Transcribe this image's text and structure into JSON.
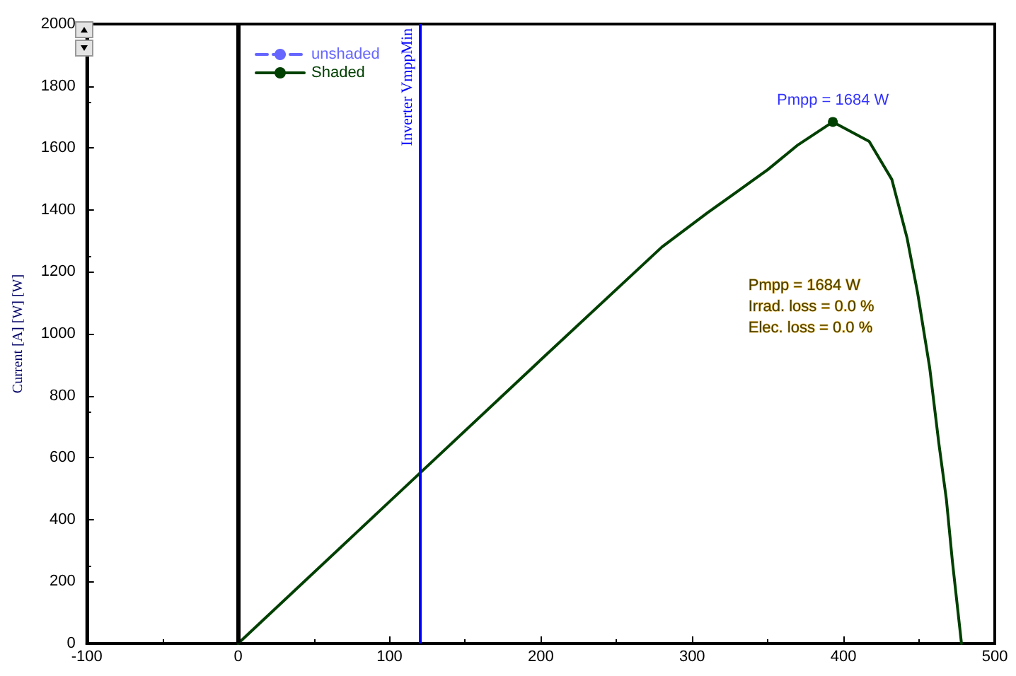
{
  "chart_data": {
    "type": "line",
    "ylabel": "Current [A] [W] [W]",
    "x": [
      0,
      100,
      200,
      280,
      310,
      330,
      350,
      370,
      393,
      417,
      432,
      442,
      449,
      457,
      463,
      468,
      472,
      478
    ],
    "series": [
      {
        "name": "unshaded",
        "color": "#6666ff",
        "line_style": "dashed",
        "values": [
          null,
          null,
          null,
          null,
          null,
          null,
          null,
          null,
          null,
          null,
          null,
          null,
          null,
          null,
          null,
          null,
          null,
          null
        ]
      },
      {
        "name": "Shaded",
        "color": "#004000",
        "line_style": "solid",
        "values": [
          0,
          458,
          916,
          1280,
          1390,
          1460,
          1530,
          1610,
          1684,
          1621,
          1498,
          1310,
          1132,
          890,
          648,
          466,
          265,
          0
        ]
      }
    ],
    "xlim": [
      -100,
      500
    ],
    "xticks": [
      -100,
      0,
      100,
      200,
      300,
      400,
      500
    ],
    "ylim": [
      0,
      2000
    ],
    "yticks": [
      0,
      200,
      400,
      600,
      800,
      1000,
      1200,
      1400,
      1600,
      1800,
      2000
    ],
    "ref_lines": [
      {
        "axis": "x",
        "value": 0,
        "color": "#000000"
      },
      {
        "axis": "x",
        "value": 120,
        "label": "Inverter VmppMin",
        "color": "#0000ff"
      }
    ],
    "annotations": [
      {
        "text": "Pmpp = 1684 W",
        "x": 393,
        "y": 1684
      },
      "Pmpp = 1684 W",
      "Irrad. loss = 0.0 %",
      "Elec. loss = 0.0 %"
    ],
    "grid": false,
    "legend": "top left",
    "marker": "none"
  }
}
